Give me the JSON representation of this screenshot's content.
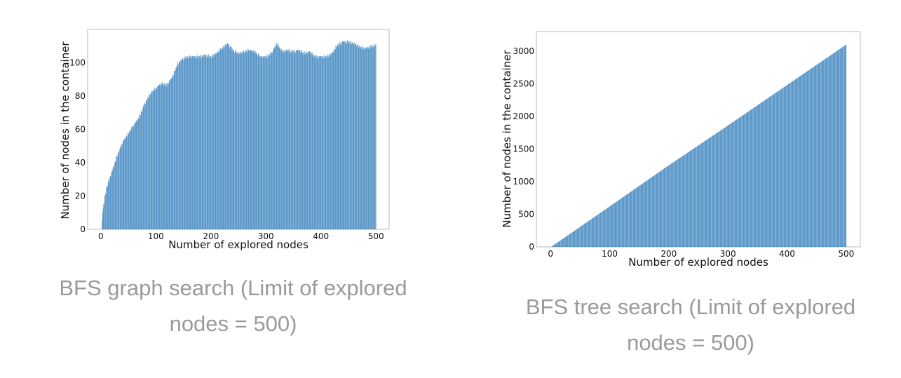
{
  "colors": {
    "bar": "#2878b8",
    "caption": "#9a9a9a",
    "axis": "#bbbbbb",
    "text": "#111111"
  },
  "captions": [
    {
      "line1": "BFS graph search (Limit of explored",
      "line2": "nodes = 500)"
    },
    {
      "line1": "BFS tree search (Limit of explored",
      "line2": "nodes = 500)"
    }
  ],
  "chart_data": [
    {
      "type": "bar",
      "title": "",
      "xlabel": "Number of explored nodes",
      "ylabel": "Number of nodes in the container",
      "xlim": [
        -24,
        524
      ],
      "ylim": [
        0,
        120
      ],
      "xticks": [
        0,
        100,
        200,
        300,
        400,
        500
      ],
      "yticks": [
        0,
        20,
        40,
        60,
        80,
        100
      ],
      "grid": false,
      "x": [
        1,
        500
      ],
      "curve_points": [
        [
          1,
          0
        ],
        [
          3,
          10
        ],
        [
          5,
          15
        ],
        [
          10,
          25
        ],
        [
          20,
          35
        ],
        [
          30,
          45
        ],
        [
          40,
          53
        ],
        [
          50,
          58
        ],
        [
          60,
          63
        ],
        [
          70,
          68
        ],
        [
          80,
          76
        ],
        [
          90,
          82
        ],
        [
          100,
          85
        ],
        [
          110,
          88
        ],
        [
          120,
          87
        ],
        [
          130,
          92
        ],
        [
          140,
          100
        ],
        [
          150,
          103
        ],
        [
          160,
          104
        ],
        [
          170,
          104
        ],
        [
          180,
          104
        ],
        [
          190,
          105
        ],
        [
          200,
          104
        ],
        [
          210,
          106
        ],
        [
          220,
          109
        ],
        [
          230,
          112
        ],
        [
          240,
          108
        ],
        [
          250,
          106
        ],
        [
          260,
          107
        ],
        [
          270,
          108
        ],
        [
          280,
          107
        ],
        [
          290,
          104
        ],
        [
          300,
          104
        ],
        [
          310,
          106
        ],
        [
          320,
          112
        ],
        [
          330,
          107
        ],
        [
          340,
          108
        ],
        [
          350,
          107
        ],
        [
          360,
          108
        ],
        [
          370,
          106
        ],
        [
          380,
          107
        ],
        [
          390,
          104
        ],
        [
          400,
          104
        ],
        [
          410,
          104
        ],
        [
          420,
          106
        ],
        [
          430,
          111
        ],
        [
          440,
          113
        ],
        [
          450,
          113
        ],
        [
          460,
          112
        ],
        [
          470,
          110
        ],
        [
          480,
          109
        ],
        [
          490,
          110
        ],
        [
          500,
          111
        ]
      ]
    },
    {
      "type": "bar",
      "title": "",
      "xlabel": "Number of explored nodes",
      "ylabel": "Number of nodes in the container",
      "xlim": [
        -24,
        524
      ],
      "ylim": [
        0,
        3300
      ],
      "xticks": [
        0,
        100,
        200,
        300,
        400,
        500
      ],
      "yticks": [
        0,
        500,
        1000,
        1500,
        2000,
        2500,
        3000
      ],
      "grid": false,
      "x": [
        1,
        500
      ],
      "curve_points": [
        [
          1,
          0
        ],
        [
          100,
          620
        ],
        [
          200,
          1250
        ],
        [
          300,
          1860
        ],
        [
          400,
          2480
        ],
        [
          500,
          3100
        ]
      ]
    }
  ]
}
